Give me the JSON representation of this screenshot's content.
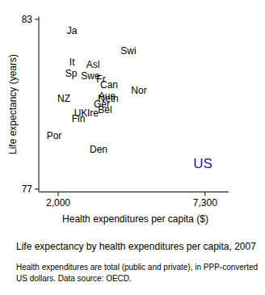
{
  "chart_data": {
    "type": "scatter",
    "title": "Life expectancy by health expenditures per capita, 2007",
    "subtitle": "Health expenditures are total (public and private), in PPP-converted US dollars. Data source: OECD.",
    "x_label": "Health expenditures per capita ($)",
    "y_label": "Life expectancy (years)",
    "marker": "label",
    "labels": [
      "Ja",
      "Swi",
      "It",
      "Asl",
      "Sp",
      "Swe",
      "Fr",
      "Can",
      "Nor",
      "NZ",
      "Aus",
      "Neth",
      "Ger",
      "Bel",
      "UK",
      "Ire",
      "Fin",
      "Por",
      "Den",
      "US"
    ],
    "x": [
      2496,
      4536,
      2500,
      3254,
      2466,
      3166,
      3545,
      3837,
      4915,
      2204,
      3750,
      3808,
      3574,
      3690,
      2816,
      3254,
      2729,
      1854,
      3458,
      7219
    ],
    "values": [
      82.6,
      81.9,
      81.5,
      81.4,
      81.1,
      81.0,
      80.9,
      80.7,
      80.5,
      80.2,
      80.3,
      80.2,
      80.0,
      79.8,
      79.7,
      79.7,
      79.5,
      78.9,
      78.4,
      77.9
    ],
    "colors": [
      "#000000",
      "#000000",
      "#000000",
      "#000000",
      "#000000",
      "#000000",
      "#000000",
      "#000000",
      "#000000",
      "#000000",
      "#000000",
      "#000000",
      "#000000",
      "#000000",
      "#000000",
      "#000000",
      "#000000",
      "#000000",
      "#000000",
      "#1a1aa6"
    ],
    "xlim": [
      1300,
      8150
    ],
    "ylim": [
      76.9,
      83.1
    ],
    "xticks": [
      {
        "value": 2000,
        "label": "2,000"
      },
      {
        "value": 7300,
        "label": "7,300"
      }
    ],
    "yticks": [
      77,
      83
    ],
    "grid": false
  }
}
